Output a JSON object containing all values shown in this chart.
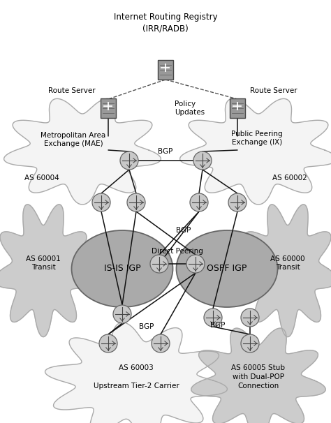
{
  "bg": "#ffffff",
  "lc": "#111111",
  "router_fill": "#c8c8c8",
  "router_edge": "#666666",
  "server_fill": "#888888",
  "server_edge": "#444444",
  "cloud_white": "#f4f4f4",
  "cloud_gray": "#cccccc",
  "ellipse_fill": "#aaaaaa",
  "ellipse_edge": "#666666",
  "texts": {
    "title": "Internet Routing Registry\n(IRR/RADB)",
    "policy": "Policy\nUpdates",
    "rs_left": "Route Server",
    "rs_right": "Route Server",
    "mae": "Metropolitan Area\nExchange (MAE)",
    "as60004": "AS 60004",
    "ppe": "Public Peering\nExchange (IX)",
    "as60002": "AS 60002",
    "as60001": "AS 60001\nTransit",
    "isis": "IS-IS IGP",
    "ospf": "OSPF IGP",
    "as60000": "AS 60000\nTransit",
    "bgp1": "BGP",
    "bgp2": "BGP",
    "bgp3": "BGP",
    "bgp4": "BGP",
    "dp": "Direct Peering",
    "as60003": "AS 60003",
    "upstream": "Upstream Tier-2 Carrier",
    "as60005": "AS 60005 Stub\nwith Dual-POP\nConnection"
  }
}
